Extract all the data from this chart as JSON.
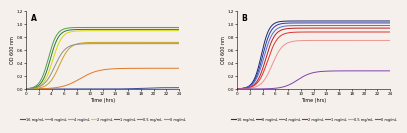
{
  "panel_A": {
    "title": "A",
    "xlabel": "Time (hrs)",
    "ylabel": "OD 600 nm",
    "xlim": [
      0,
      24
    ],
    "ylim": [
      0,
      1.2
    ],
    "series": [
      {
        "label": "16 mg/mL",
        "color": "#3a4a9a",
        "final": 0.02,
        "lag": 18.0,
        "rate": 0.8
      },
      {
        "label": "8 mg/mL",
        "color": "#e07828",
        "final": 0.32,
        "lag": 8.5,
        "rate": 0.7
      },
      {
        "label": "4 mg/mL",
        "color": "#c8a020",
        "final": 0.72,
        "lag": 5.2,
        "rate": 1.2
      },
      {
        "label": "2 mg/mL",
        "color": "#d8d800",
        "final": 0.9,
        "lag": 4.2,
        "rate": 1.4
      },
      {
        "label": "1 mg/mL",
        "color": "#2a7a3a",
        "final": 0.92,
        "lag": 3.8,
        "rate": 1.5
      },
      {
        "label": "0.5 mg/mL",
        "color": "#50a050",
        "final": 0.95,
        "lag": 3.5,
        "rate": 1.5
      },
      {
        "label": "0 mg/mL",
        "color": "#909090",
        "final": 0.7,
        "lag": 4.5,
        "rate": 1.2
      }
    ]
  },
  "panel_B": {
    "title": "B",
    "xlabel": "Time (hrs)",
    "ylabel": "OD 600 nm",
    "xlim": [
      0,
      24
    ],
    "ylim": [
      0,
      1.2
    ],
    "series": [
      {
        "label": "16 mg/mL",
        "color": "#1a2870",
        "final": 1.05,
        "lag": 3.8,
        "rate": 1.6
      },
      {
        "label": "8 mg/mL",
        "color": "#2838a8",
        "final": 1.02,
        "lag": 4.0,
        "rate": 1.5
      },
      {
        "label": "4 mg/mL",
        "color": "#5070d8",
        "final": 0.98,
        "lag": 4.2,
        "rate": 1.4
      },
      {
        "label": "2 mg/mL",
        "color": "#b82020",
        "final": 0.94,
        "lag": 4.5,
        "rate": 1.4
      },
      {
        "label": "1 mg/mL",
        "color": "#e03030",
        "final": 0.88,
        "lag": 4.8,
        "rate": 1.3
      },
      {
        "label": "0.5 mg/mL",
        "color": "#f09090",
        "final": 0.75,
        "lag": 5.5,
        "rate": 1.2
      },
      {
        "label": "0 mg/mL",
        "color": "#8040b0",
        "final": 0.28,
        "lag": 9.5,
        "rate": 0.9
      }
    ]
  },
  "legend_labels_A": [
    "16 mg/mL",
    "8 mg/mL",
    "4 mg/mL",
    "2 mg/mL",
    "1 mg/mL",
    "0.5 mg/mL",
    "0 mg/mL"
  ],
  "legend_labels_B": [
    "16 mg/mL",
    "8 mg/mL",
    "4 mg/mL",
    "2 mg/mL",
    "1 mg/mL",
    "0.5 mg/mL",
    "0 mg/mL"
  ],
  "xticks": [
    0,
    2,
    4,
    6,
    8,
    10,
    12,
    14,
    16,
    18,
    20,
    22,
    24
  ],
  "yticks": [
    0.0,
    0.2,
    0.4,
    0.6,
    0.8,
    1.0,
    1.2
  ],
  "bg_color": "#f5f0eb"
}
